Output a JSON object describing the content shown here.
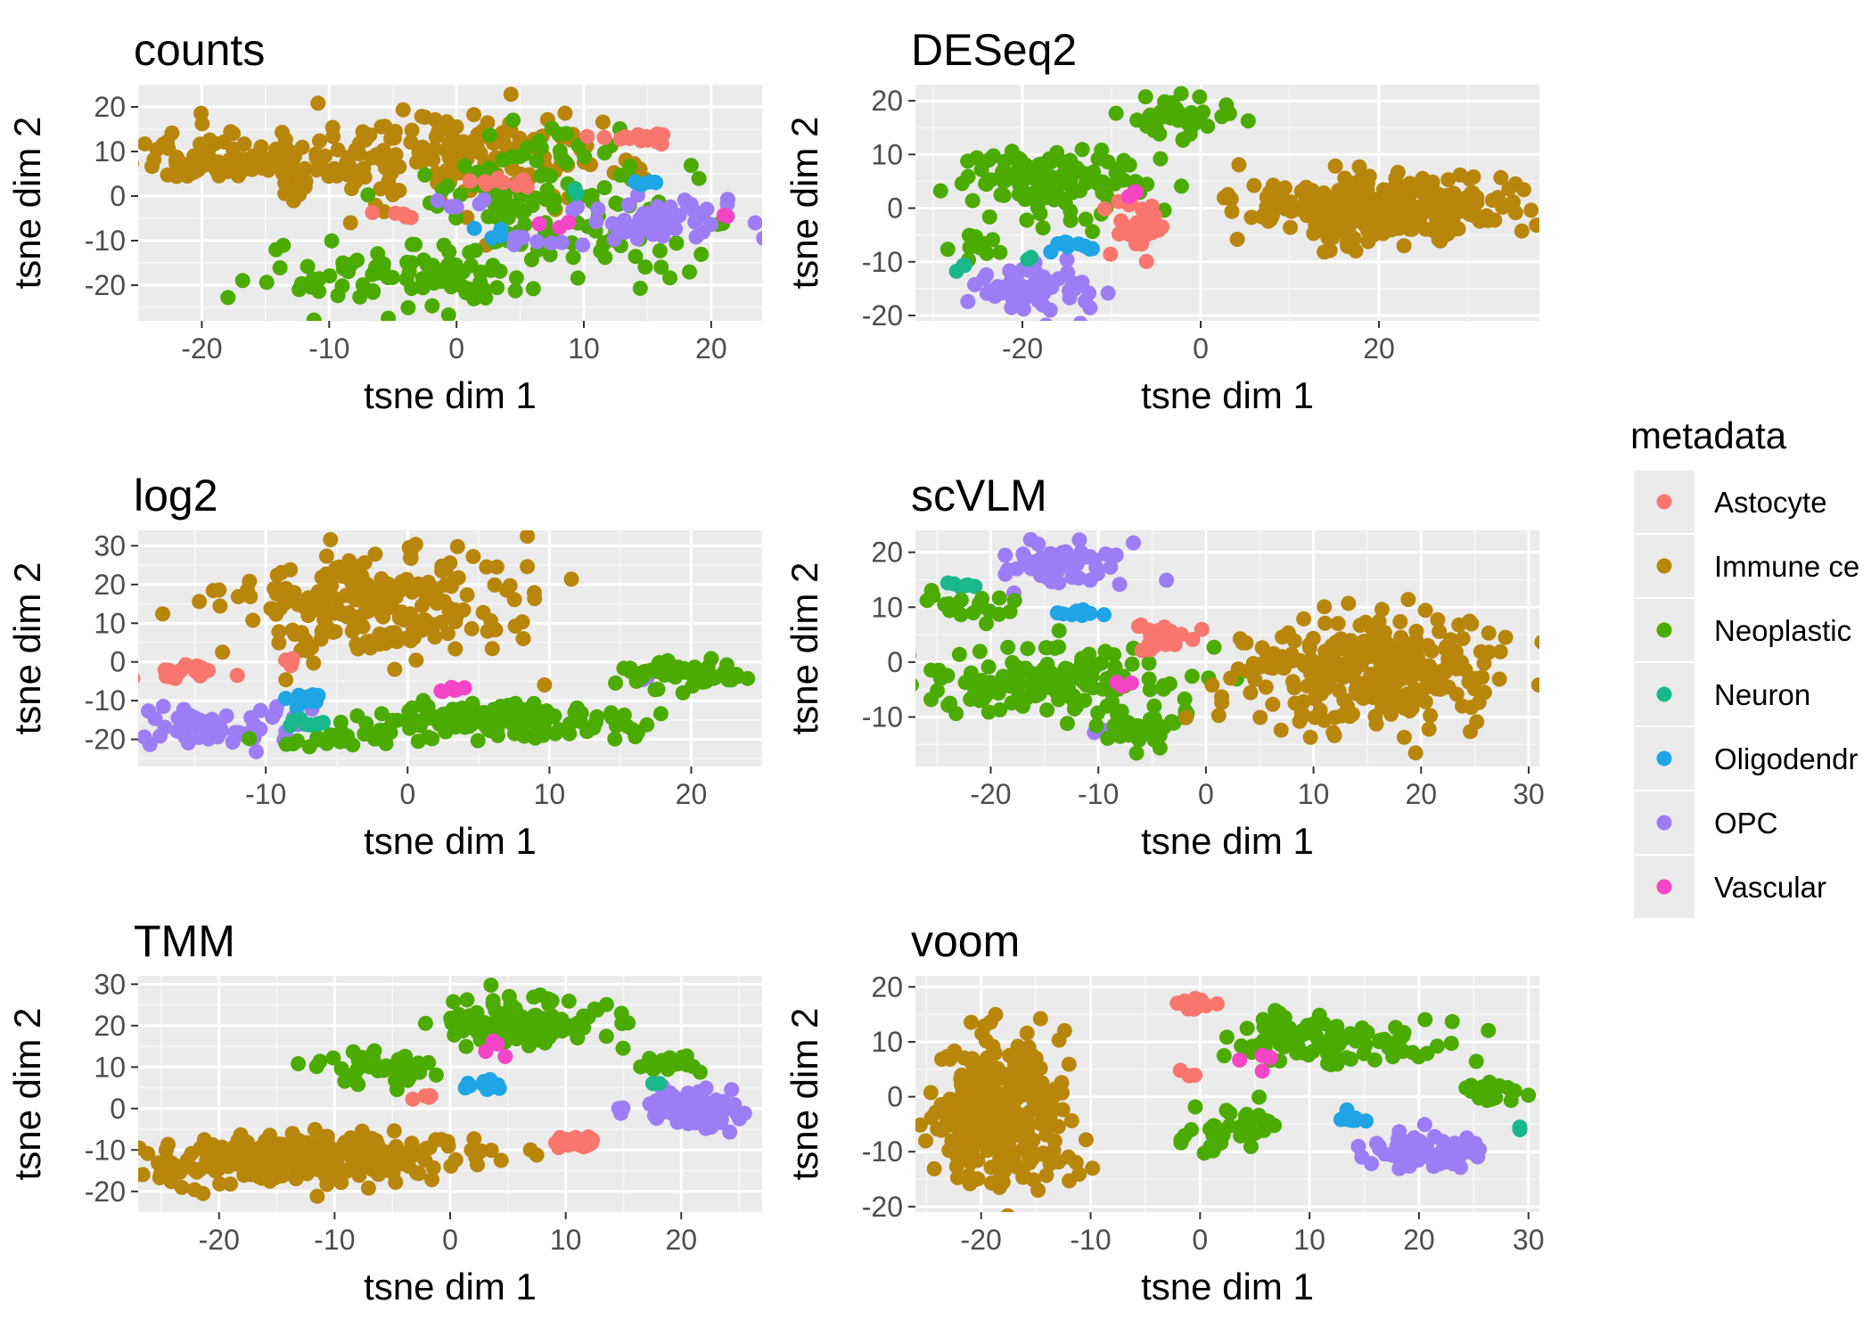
{
  "legend": {
    "title": "metadata",
    "entries": [
      {
        "label": "Astocyte",
        "color": "#F8766D"
      },
      {
        "label": "Immune ce",
        "color": "#B8860B"
      },
      {
        "label": "Neoplastic",
        "color": "#4BAB00"
      },
      {
        "label": "Neuron",
        "color": "#19B88A"
      },
      {
        "label": "Oligodendr",
        "color": "#1FA4E6"
      },
      {
        "label": "OPC",
        "color": "#9D7DF5"
      },
      {
        "label": "Vascular",
        "color": "#F445C6"
      }
    ]
  },
  "chart_data": [
    {
      "type": "scatter",
      "title": "counts",
      "xlabel": "tsne dim 1",
      "ylabel": "tsne dim 2",
      "xlim": [
        -25,
        24
      ],
      "ylim": [
        -28,
        25
      ],
      "xticks": [
        -20,
        -10,
        0,
        10,
        20
      ],
      "yticks": [
        -20,
        -10,
        0,
        10,
        20
      ],
      "grid": true,
      "clusters": [
        {
          "category": 1,
          "cx": -17,
          "cy": 8,
          "sx": 4,
          "sy": 3,
          "n": 90
        },
        {
          "category": 1,
          "cx": -2,
          "cy": 7,
          "sx": 7,
          "sy": 5,
          "n": 150
        },
        {
          "category": 1,
          "cx": 5,
          "cy": 12,
          "sx": 4,
          "sy": 4,
          "n": 40
        },
        {
          "category": 2,
          "cx": -3,
          "cy": -18,
          "sx": 6,
          "sy": 4,
          "n": 90
        },
        {
          "category": 2,
          "cx": 7,
          "cy": 0,
          "sx": 5,
          "sy": 8,
          "n": 110
        },
        {
          "category": 2,
          "cx": 12,
          "cy": -10,
          "sx": 4,
          "sy": 3,
          "n": 25
        },
        {
          "category": 0,
          "cx": 14,
          "cy": 13,
          "sx": 2,
          "sy": 0.7,
          "n": 15
        },
        {
          "category": 0,
          "cx": 3,
          "cy": 3,
          "sx": 1.5,
          "sy": 0.8,
          "n": 10
        },
        {
          "category": 0,
          "cx": -4,
          "cy": -4,
          "sx": 1.2,
          "sy": 0.5,
          "n": 5
        },
        {
          "category": 5,
          "cx": 16,
          "cy": -5,
          "sx": 4,
          "sy": 2.5,
          "n": 45
        },
        {
          "category": 5,
          "cx": 7,
          "cy": -10,
          "sx": 2,
          "sy": 1,
          "n": 8
        },
        {
          "category": 5,
          "cx": 0,
          "cy": -2,
          "sx": 1.2,
          "sy": 1.2,
          "n": 6
        },
        {
          "category": 4,
          "cx": 15,
          "cy": 3,
          "sx": 1,
          "sy": 0.5,
          "n": 5
        },
        {
          "category": 4,
          "cx": 3,
          "cy": -9,
          "sx": 1,
          "sy": 1,
          "n": 4
        },
        {
          "category": 6,
          "cx": 21,
          "cy": -4,
          "sx": 0.4,
          "sy": 0.4,
          "n": 2
        },
        {
          "category": 6,
          "cx": 8,
          "cy": -7,
          "sx": 1,
          "sy": 0.6,
          "n": 3
        },
        {
          "category": 3,
          "cx": 9,
          "cy": 1,
          "sx": 0.8,
          "sy": 0.8,
          "n": 2
        }
      ]
    },
    {
      "type": "scatter",
      "title": "DESeq2",
      "xlabel": "tsne dim 1",
      "ylabel": "tsne dim 2",
      "xlim": [
        -32,
        38
      ],
      "ylim": [
        -21,
        23
      ],
      "xticks": [
        -20,
        0,
        20
      ],
      "yticks": [
        -20,
        -10,
        0,
        10,
        20
      ],
      "grid": true,
      "clusters": [
        {
          "category": 1,
          "cx": 20,
          "cy": 0,
          "sx": 8,
          "sy": 3,
          "n": 300
        },
        {
          "category": 2,
          "cx": -2,
          "cy": 17,
          "sx": 2.5,
          "sy": 2,
          "n": 40
        },
        {
          "category": 2,
          "cx": -17,
          "cy": 5,
          "sx": 6,
          "sy": 3,
          "n": 110
        },
        {
          "category": 2,
          "cx": -25,
          "cy": -6,
          "sx": 2,
          "sy": 1.5,
          "n": 15
        },
        {
          "category": 5,
          "cx": -19,
          "cy": -15,
          "sx": 3,
          "sy": 2,
          "n": 70
        },
        {
          "category": 0,
          "cx": -7,
          "cy": -3,
          "sx": 1.5,
          "sy": 2.5,
          "n": 30
        },
        {
          "category": 4,
          "cx": -14,
          "cy": -7,
          "sx": 1.5,
          "sy": 0.6,
          "n": 10
        },
        {
          "category": 3,
          "cx": -27,
          "cy": -11,
          "sx": 0.8,
          "sy": 0.6,
          "n": 3
        },
        {
          "category": 3,
          "cx": -20,
          "cy": -9,
          "sx": 0.5,
          "sy": 0.5,
          "n": 2
        },
        {
          "category": 6,
          "cx": -8,
          "cy": 3,
          "sx": 0.8,
          "sy": 0.5,
          "n": 3
        }
      ]
    },
    {
      "type": "scatter",
      "title": "log2",
      "xlabel": "tsne dim 1",
      "ylabel": "tsne dim 2",
      "xlim": [
        -19,
        25
      ],
      "ylim": [
        -27,
        34
      ],
      "xticks": [
        -10,
        0,
        10,
        20
      ],
      "yticks": [
        -20,
        -10,
        0,
        10,
        20,
        30
      ],
      "grid": true,
      "clusters": [
        {
          "category": 1,
          "cx": -2,
          "cy": 15,
          "sx": 5,
          "sy": 7,
          "n": 220
        },
        {
          "category": 0,
          "cx": -16,
          "cy": -3,
          "sx": 1.5,
          "sy": 1.2,
          "n": 20
        },
        {
          "category": 0,
          "cx": -8,
          "cy": 0,
          "sx": 0.8,
          "sy": 0.8,
          "n": 5
        },
        {
          "category": 5,
          "cx": -14,
          "cy": -17,
          "sx": 3,
          "sy": 2.5,
          "n": 70
        },
        {
          "category": 5,
          "cx": 17,
          "cy": -4,
          "sx": 0.5,
          "sy": 0.5,
          "n": 2
        },
        {
          "category": 2,
          "cx": 6,
          "cy": -15,
          "sx": 5,
          "sy": 2.5,
          "n": 130
        },
        {
          "category": 2,
          "cx": -4,
          "cy": -20,
          "sx": 3,
          "sy": 1,
          "n": 30
        },
        {
          "category": 2,
          "cx": 20,
          "cy": -3,
          "sx": 2,
          "sy": 2,
          "n": 50
        },
        {
          "category": 4,
          "cx": -7,
          "cy": -9,
          "sx": 1,
          "sy": 1,
          "n": 10
        },
        {
          "category": 3,
          "cx": -7,
          "cy": -16,
          "sx": 0.8,
          "sy": 0.8,
          "n": 8
        },
        {
          "category": 6,
          "cx": 3,
          "cy": -7,
          "sx": 0.8,
          "sy": 0.6,
          "n": 6
        }
      ]
    },
    {
      "type": "scatter",
      "title": "scVLM",
      "xlabel": "tsne dim 1",
      "ylabel": "tsne dim 2",
      "xlim": [
        -27,
        31
      ],
      "ylim": [
        -19,
        24
      ],
      "xticks": [
        -20,
        -10,
        0,
        10,
        20,
        30
      ],
      "yticks": [
        -10,
        0,
        10,
        20
      ],
      "grid": true,
      "clusters": [
        {
          "category": 5,
          "cx": -14,
          "cy": 18,
          "sx": 3,
          "sy": 2,
          "n": 70
        },
        {
          "category": 5,
          "cx": -9,
          "cy": -12,
          "sx": 1,
          "sy": 1,
          "n": 4
        },
        {
          "category": 3,
          "cx": -22,
          "cy": 14,
          "sx": 1,
          "sy": 1,
          "n": 6
        },
        {
          "category": 2,
          "cx": -21,
          "cy": 10,
          "sx": 2,
          "sy": 1.5,
          "n": 20
        },
        {
          "category": 2,
          "cx": -15,
          "cy": -3,
          "sx": 7,
          "sy": 3,
          "n": 150
        },
        {
          "category": 2,
          "cx": -6,
          "cy": -12,
          "sx": 3,
          "sy": 2,
          "n": 35
        },
        {
          "category": 4,
          "cx": -11,
          "cy": 9,
          "sx": 1.2,
          "sy": 0.6,
          "n": 10
        },
        {
          "category": 0,
          "cx": -4,
          "cy": 4,
          "sx": 1.5,
          "sy": 1.5,
          "n": 25
        },
        {
          "category": 1,
          "cx": 16,
          "cy": -2,
          "sx": 6,
          "sy": 5,
          "n": 280
        },
        {
          "category": 6,
          "cx": -8,
          "cy": -4,
          "sx": 0.8,
          "sy": 0.5,
          "n": 3
        }
      ]
    },
    {
      "type": "scatter",
      "title": "TMM",
      "xlabel": "tsne dim 1",
      "ylabel": "tsne dim 2",
      "xlim": [
        -27,
        27
      ],
      "ylim": [
        -25,
        32
      ],
      "xticks": [
        -20,
        -10,
        0,
        10,
        20
      ],
      "yticks": [
        -20,
        -10,
        0,
        10,
        20,
        30
      ],
      "grid": true,
      "clusters": [
        {
          "category": 1,
          "cx": -12,
          "cy": -12,
          "sx": 7,
          "sy": 3,
          "n": 300
        },
        {
          "category": 2,
          "cx": 6,
          "cy": 21,
          "sx": 3.5,
          "sy": 3,
          "n": 110
        },
        {
          "category": 2,
          "cx": -6,
          "cy": 10,
          "sx": 3,
          "sy": 2,
          "n": 40
        },
        {
          "category": 2,
          "cx": 19,
          "cy": 11,
          "sx": 1.5,
          "sy": 1.2,
          "n": 15
        },
        {
          "category": 5,
          "cx": 21,
          "cy": 0,
          "sx": 2.5,
          "sy": 2,
          "n": 90
        },
        {
          "category": 0,
          "cx": 11,
          "cy": -8,
          "sx": 1,
          "sy": 0.8,
          "n": 25
        },
        {
          "category": 0,
          "cx": -2,
          "cy": 3,
          "sx": 0.5,
          "sy": 0.6,
          "n": 5
        },
        {
          "category": 4,
          "cx": 3,
          "cy": 5.5,
          "sx": 1.5,
          "sy": 0.6,
          "n": 12
        },
        {
          "category": 6,
          "cx": 4,
          "cy": 14,
          "sx": 1,
          "sy": 2,
          "n": 4
        },
        {
          "category": 3,
          "cx": 18,
          "cy": 6,
          "sx": 0.5,
          "sy": 0.5,
          "n": 2
        }
      ]
    },
    {
      "type": "scatter",
      "title": "voom",
      "xlabel": "tsne dim 1",
      "ylabel": "tsne dim 2",
      "xlim": [
        -26,
        31
      ],
      "ylim": [
        -21,
        22
      ],
      "xticks": [
        -20,
        -10,
        0,
        10,
        20,
        30
      ],
      "yticks": [
        -20,
        -10,
        0,
        10,
        20
      ],
      "grid": true,
      "clusters": [
        {
          "category": 1,
          "cx": -18,
          "cy": -3,
          "sx": 3,
          "sy": 7,
          "n": 280
        },
        {
          "category": 0,
          "cx": 0,
          "cy": 17,
          "sx": 1.2,
          "sy": 0.7,
          "n": 15
        },
        {
          "category": 0,
          "cx": -1,
          "cy": 4,
          "sx": 0.5,
          "sy": 0.5,
          "n": 3
        },
        {
          "category": 2,
          "cx": 13,
          "cy": 10,
          "sx": 5,
          "sy": 2,
          "n": 90
        },
        {
          "category": 2,
          "cx": 3,
          "cy": -6,
          "sx": 2.5,
          "sy": 2,
          "n": 40
        },
        {
          "category": 2,
          "cx": 27,
          "cy": 1,
          "sx": 1.5,
          "sy": 1,
          "n": 15
        },
        {
          "category": 2,
          "cx": 7,
          "cy": 13,
          "sx": 1.5,
          "sy": 1.5,
          "n": 15
        },
        {
          "category": 5,
          "cx": 21,
          "cy": -10,
          "sx": 2.5,
          "sy": 1.5,
          "n": 80
        },
        {
          "category": 4,
          "cx": 14,
          "cy": -4,
          "sx": 0.7,
          "sy": 0.8,
          "n": 8
        },
        {
          "category": 6,
          "cx": 7,
          "cy": 6,
          "sx": 2,
          "sy": 1.5,
          "n": 4
        },
        {
          "category": 3,
          "cx": 29,
          "cy": -6,
          "sx": 0.4,
          "sy": 0.4,
          "n": 2
        }
      ]
    }
  ]
}
